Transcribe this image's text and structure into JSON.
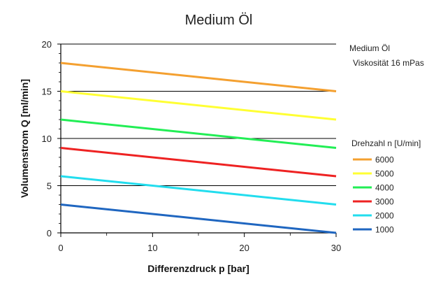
{
  "chart_data": {
    "type": "line",
    "title": "Medium Öl",
    "xlabel": "Differenzdruck p [bar]",
    "ylabel": "Volumenstrom Q [ml/min]",
    "xlim": [
      0,
      30
    ],
    "ylim": [
      0,
      20
    ],
    "x_ticks": [
      "0",
      "10",
      "20",
      "30"
    ],
    "y_ticks": [
      "0",
      "5",
      "10",
      "15",
      "20"
    ],
    "grid": true,
    "notes": [
      "Medium Öl",
      "Viskosität 16 mPas"
    ],
    "legend_title": "Drehzahl n [U/min]",
    "legend_position": "right",
    "x": [
      0,
      30
    ],
    "series": [
      {
        "name": "6000",
        "color": "#F4A030",
        "values": [
          18,
          15
        ]
      },
      {
        "name": "5000",
        "color": "#FFFF33",
        "values": [
          15,
          12
        ]
      },
      {
        "name": "4000",
        "color": "#22EE55",
        "values": [
          12,
          9
        ]
      },
      {
        "name": "3000",
        "color": "#EE2222",
        "values": [
          9,
          6
        ]
      },
      {
        "name": "2000",
        "color": "#22DDEE",
        "values": [
          6,
          3
        ]
      },
      {
        "name": "1000",
        "color": "#1F66C0",
        "values": [
          3,
          0
        ]
      }
    ]
  }
}
